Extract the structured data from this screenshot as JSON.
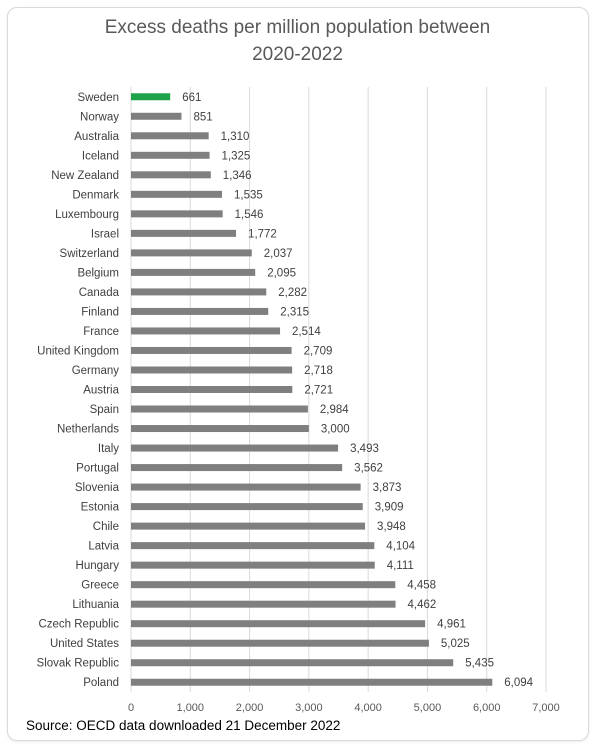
{
  "chart_data": {
    "type": "bar",
    "orientation": "horizontal",
    "title": "Excess deaths per million population between\n2020-2022",
    "categories": [
      "Sweden",
      "Norway",
      "Australia",
      "Iceland",
      "New Zealand",
      "Denmark",
      "Luxembourg",
      "Israel",
      "Switzerland",
      "Belgium",
      "Canada",
      "Finland",
      "France",
      "United Kingdom",
      "Germany",
      "Austria",
      "Spain",
      "Netherlands",
      "Italy",
      "Portugal",
      "Slovenia",
      "Estonia",
      "Chile",
      "Latvia",
      "Hungary",
      "Greece",
      "Lithuania",
      "Czech Republic",
      "United States",
      "Slovak Republic",
      "Poland"
    ],
    "values": [
      661,
      851,
      1310,
      1325,
      1346,
      1535,
      1546,
      1772,
      2037,
      2095,
      2282,
      2315,
      2514,
      2709,
      2718,
      2721,
      2984,
      3000,
      3493,
      3562,
      3873,
      3909,
      3948,
      4104,
      4111,
      4458,
      4462,
      4961,
      5025,
      5435,
      6094
    ],
    "value_labels": [
      "661",
      "851",
      "1,310",
      "1,325",
      "1,346",
      "1,535",
      "1,546",
      "1,772",
      "2,037",
      "2,095",
      "2,282",
      "2,315",
      "2,514",
      "2,709",
      "2,718",
      "2,721",
      "2,984",
      "3,000",
      "3,493",
      "3,562",
      "3,873",
      "3,909",
      "3,948",
      "4,104",
      "4,111",
      "4,458",
      "4,462",
      "4,961",
      "5,025",
      "5,435",
      "6,094"
    ],
    "xlim": [
      0,
      7000
    ],
    "xticks": [
      0,
      1000,
      2000,
      3000,
      4000,
      5000,
      6000,
      7000
    ],
    "xtick_labels": [
      "0",
      "1,000",
      "2,000",
      "3,000",
      "4,000",
      "5,000",
      "6,000",
      "7,000"
    ],
    "grid": "vertical",
    "legend": "none",
    "highlight_category": "Sweden"
  },
  "colors": {
    "bar": "#7f7f7f",
    "highlight": "#1fa34a",
    "grid": "#d9d9d9"
  },
  "source": "Source: OECD data downloaded 21 December 2022"
}
